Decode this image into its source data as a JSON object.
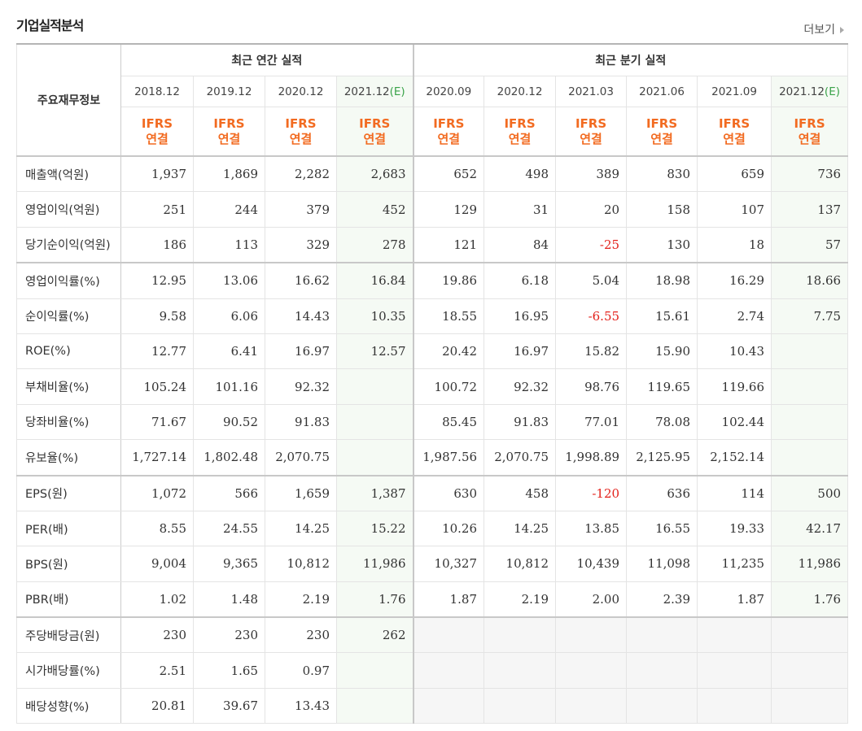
{
  "header": {
    "title": "기업실적분석",
    "more": "더보기"
  },
  "table": {
    "corner": "주요재무정보",
    "groups": [
      {
        "label": "최근 연간 실적",
        "periods": [
          {
            "date": "2018.12",
            "basis": [
              "IFRS",
              "연결"
            ]
          },
          {
            "date": "2019.12",
            "basis": [
              "IFRS",
              "연결"
            ]
          },
          {
            "date": "2020.12",
            "basis": [
              "IFRS",
              "연결"
            ]
          },
          {
            "date": "2021.12",
            "note": "(E)",
            "basis": [
              "IFRS",
              "연결"
            ]
          }
        ]
      },
      {
        "label": "최근 분기 실적",
        "periods": [
          {
            "date": "2020.09",
            "basis": [
              "IFRS",
              "연결"
            ]
          },
          {
            "date": "2020.12",
            "basis": [
              "IFRS",
              "연결"
            ]
          },
          {
            "date": "2021.03",
            "basis": [
              "IFRS",
              "연결"
            ]
          },
          {
            "date": "2021.06",
            "basis": [
              "IFRS",
              "연결"
            ]
          },
          {
            "date": "2021.09",
            "basis": [
              "IFRS",
              "연결"
            ]
          },
          {
            "date": "2021.12",
            "note": "(E)",
            "basis": [
              "IFRS",
              "연결"
            ]
          }
        ]
      }
    ],
    "sections": [
      [
        {
          "label": "매출액(억원)",
          "values": [
            "1,937",
            "1,869",
            "2,282",
            "2,683",
            "652",
            "498",
            "389",
            "830",
            "659",
            "736"
          ]
        },
        {
          "label": "영업이익(억원)",
          "values": [
            "251",
            "244",
            "379",
            "452",
            "129",
            "31",
            "20",
            "158",
            "107",
            "137"
          ]
        },
        {
          "label": "당기순이익(억원)",
          "values": [
            "186",
            "113",
            "329",
            "278",
            "121",
            "84",
            "-25",
            "130",
            "18",
            "57"
          ]
        }
      ],
      [
        {
          "label": "영업이익률(%)",
          "values": [
            "12.95",
            "13.06",
            "16.62",
            "16.84",
            "19.86",
            "6.18",
            "5.04",
            "18.98",
            "16.29",
            "18.66"
          ]
        },
        {
          "label": "순이익률(%)",
          "values": [
            "9.58",
            "6.06",
            "14.43",
            "10.35",
            "18.55",
            "16.95",
            "-6.55",
            "15.61",
            "2.74",
            "7.75"
          ]
        },
        {
          "label": "ROE(%)",
          "values": [
            "12.77",
            "6.41",
            "16.97",
            "12.57",
            "20.42",
            "16.97",
            "15.82",
            "15.90",
            "10.43",
            null
          ]
        },
        {
          "label": "부채비율(%)",
          "values": [
            "105.24",
            "101.16",
            "92.32",
            null,
            "100.72",
            "92.32",
            "98.76",
            "119.65",
            "119.66",
            null
          ]
        },
        {
          "label": "당좌비율(%)",
          "values": [
            "71.67",
            "90.52",
            "91.83",
            null,
            "85.45",
            "91.83",
            "77.01",
            "78.08",
            "102.44",
            null
          ]
        },
        {
          "label": "유보율(%)",
          "values": [
            "1,727.14",
            "1,802.48",
            "2,070.75",
            null,
            "1,987.56",
            "2,070.75",
            "1,998.89",
            "2,125.95",
            "2,152.14",
            null
          ]
        }
      ],
      [
        {
          "label": "EPS(원)",
          "values": [
            "1,072",
            "566",
            "1,659",
            "1,387",
            "630",
            "458",
            "-120",
            "636",
            "114",
            "500"
          ]
        },
        {
          "label": "PER(배)",
          "values": [
            "8.55",
            "24.55",
            "14.25",
            "15.22",
            "10.26",
            "14.25",
            "13.85",
            "16.55",
            "19.33",
            "42.17"
          ]
        },
        {
          "label": "BPS(원)",
          "values": [
            "9,004",
            "9,365",
            "10,812",
            "11,986",
            "10,327",
            "10,812",
            "10,439",
            "11,098",
            "11,235",
            "11,986"
          ]
        },
        {
          "label": "PBR(배)",
          "values": [
            "1.02",
            "1.48",
            "2.19",
            "1.76",
            "1.87",
            "2.19",
            "2.00",
            "2.39",
            "1.87",
            "1.76"
          ]
        }
      ],
      [
        {
          "label": "주당배당금(원)",
          "values": [
            "230",
            "230",
            "230",
            "262",
            null,
            null,
            null,
            null,
            null,
            null
          ]
        },
        {
          "label": "시가배당률(%)",
          "values": [
            "2.51",
            "1.65",
            "0.97",
            null,
            null,
            null,
            null,
            null,
            null,
            null
          ]
        },
        {
          "label": "배당성향(%)",
          "values": [
            "20.81",
            "39.67",
            "13.43",
            null,
            null,
            null,
            null,
            null,
            null,
            null
          ]
        }
      ]
    ]
  }
}
